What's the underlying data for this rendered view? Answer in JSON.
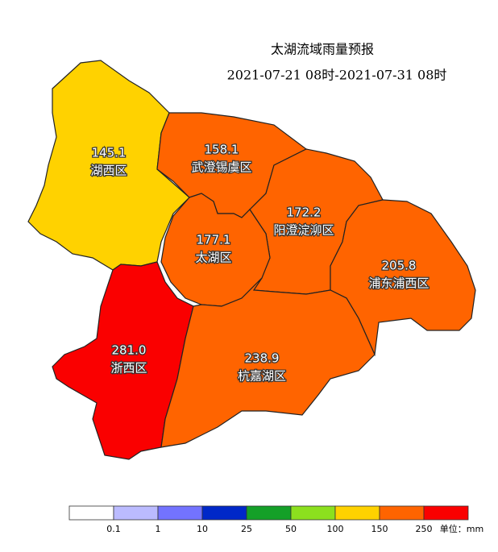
{
  "header": {
    "title": "太湖流域雨量预报",
    "subtitle": "2021-07-21 08时-2021-07-31 08时"
  },
  "regions": [
    {
      "name": "湖西区",
      "value": "145.1",
      "color": "#ffd200"
    },
    {
      "name": "武澄锡虞区",
      "value": "158.1",
      "color": "#ff6400"
    },
    {
      "name": "阳澄淀泖区",
      "value": "172.2",
      "color": "#ff6400"
    },
    {
      "name": "太湖区",
      "value": "177.1",
      "color": "#ff6400"
    },
    {
      "name": "浦东浦西区",
      "value": "205.8",
      "color": "#ff6400"
    },
    {
      "name": "浙西区",
      "value": "281.0",
      "color": "#fa0000"
    },
    {
      "name": "杭嘉湖区",
      "value": "238.9",
      "color": "#ff6400"
    }
  ],
  "legend": {
    "colors": [
      "#ffffff",
      "#bbbbff",
      "#7373ff",
      "#0028c8",
      "#14a028",
      "#8ce01e",
      "#ffd200",
      "#ff6400",
      "#fa0000"
    ],
    "ticks": [
      "0.1",
      "1",
      "10",
      "25",
      "50",
      "100",
      "150",
      "250"
    ],
    "unit": "单位：mm"
  }
}
